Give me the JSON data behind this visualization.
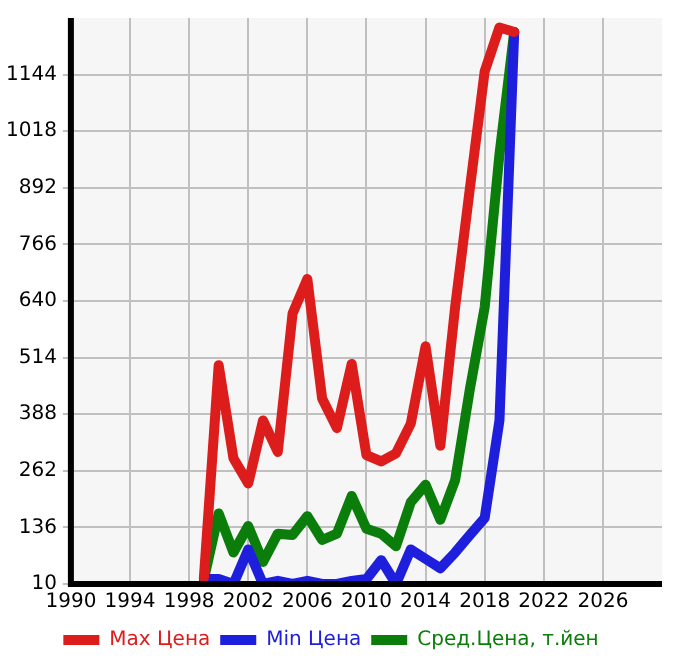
{
  "chart_data": {
    "type": "line",
    "x": [
      1999,
      2000,
      2001,
      2002,
      2003,
      2004,
      2005,
      2006,
      2007,
      2008,
      2009,
      2010,
      2011,
      2012,
      2013,
      2014,
      2015,
      2016,
      2017,
      2018,
      2019,
      2020
    ],
    "series": [
      {
        "name": "Max Цена",
        "color": "#dd1c1c",
        "values": [
          24,
          497,
          290,
          234,
          374,
          304,
          612,
          689,
          423,
          357,
          500,
          297,
          283,
          301,
          367,
          539,
          318,
          626,
          891,
          1151,
          1249,
          1239
        ]
      },
      {
        "name": "Min Цена",
        "color": "#1e1edd",
        "values": [
          21,
          21,
          10,
          87,
          10,
          17,
          10,
          17,
          10,
          10,
          17,
          21,
          63,
          10,
          87,
          66,
          45,
          80,
          119,
          157,
          374,
          1239
        ]
      },
      {
        "name": "Сред.Цена, т.йен",
        "color": "#0a7d0a",
        "values": [
          21,
          167,
          80,
          139,
          59,
          122,
          119,
          161,
          108,
          122,
          206,
          133,
          122,
          94,
          192,
          231,
          153,
          241,
          444,
          626,
          966,
          1239
        ]
      }
    ],
    "xlim": [
      1990,
      2030
    ],
    "xticks": [
      1990,
      1994,
      1998,
      2002,
      2006,
      2010,
      2014,
      2018,
      2022,
      2026
    ],
    "ylim": [
      10,
      1270
    ],
    "yticks": [
      10,
      136,
      262,
      388,
      514,
      640,
      766,
      892,
      1018,
      1144
    ],
    "grid": true,
    "legend": "bottom",
    "marker": "none",
    "line_style": "solid"
  }
}
